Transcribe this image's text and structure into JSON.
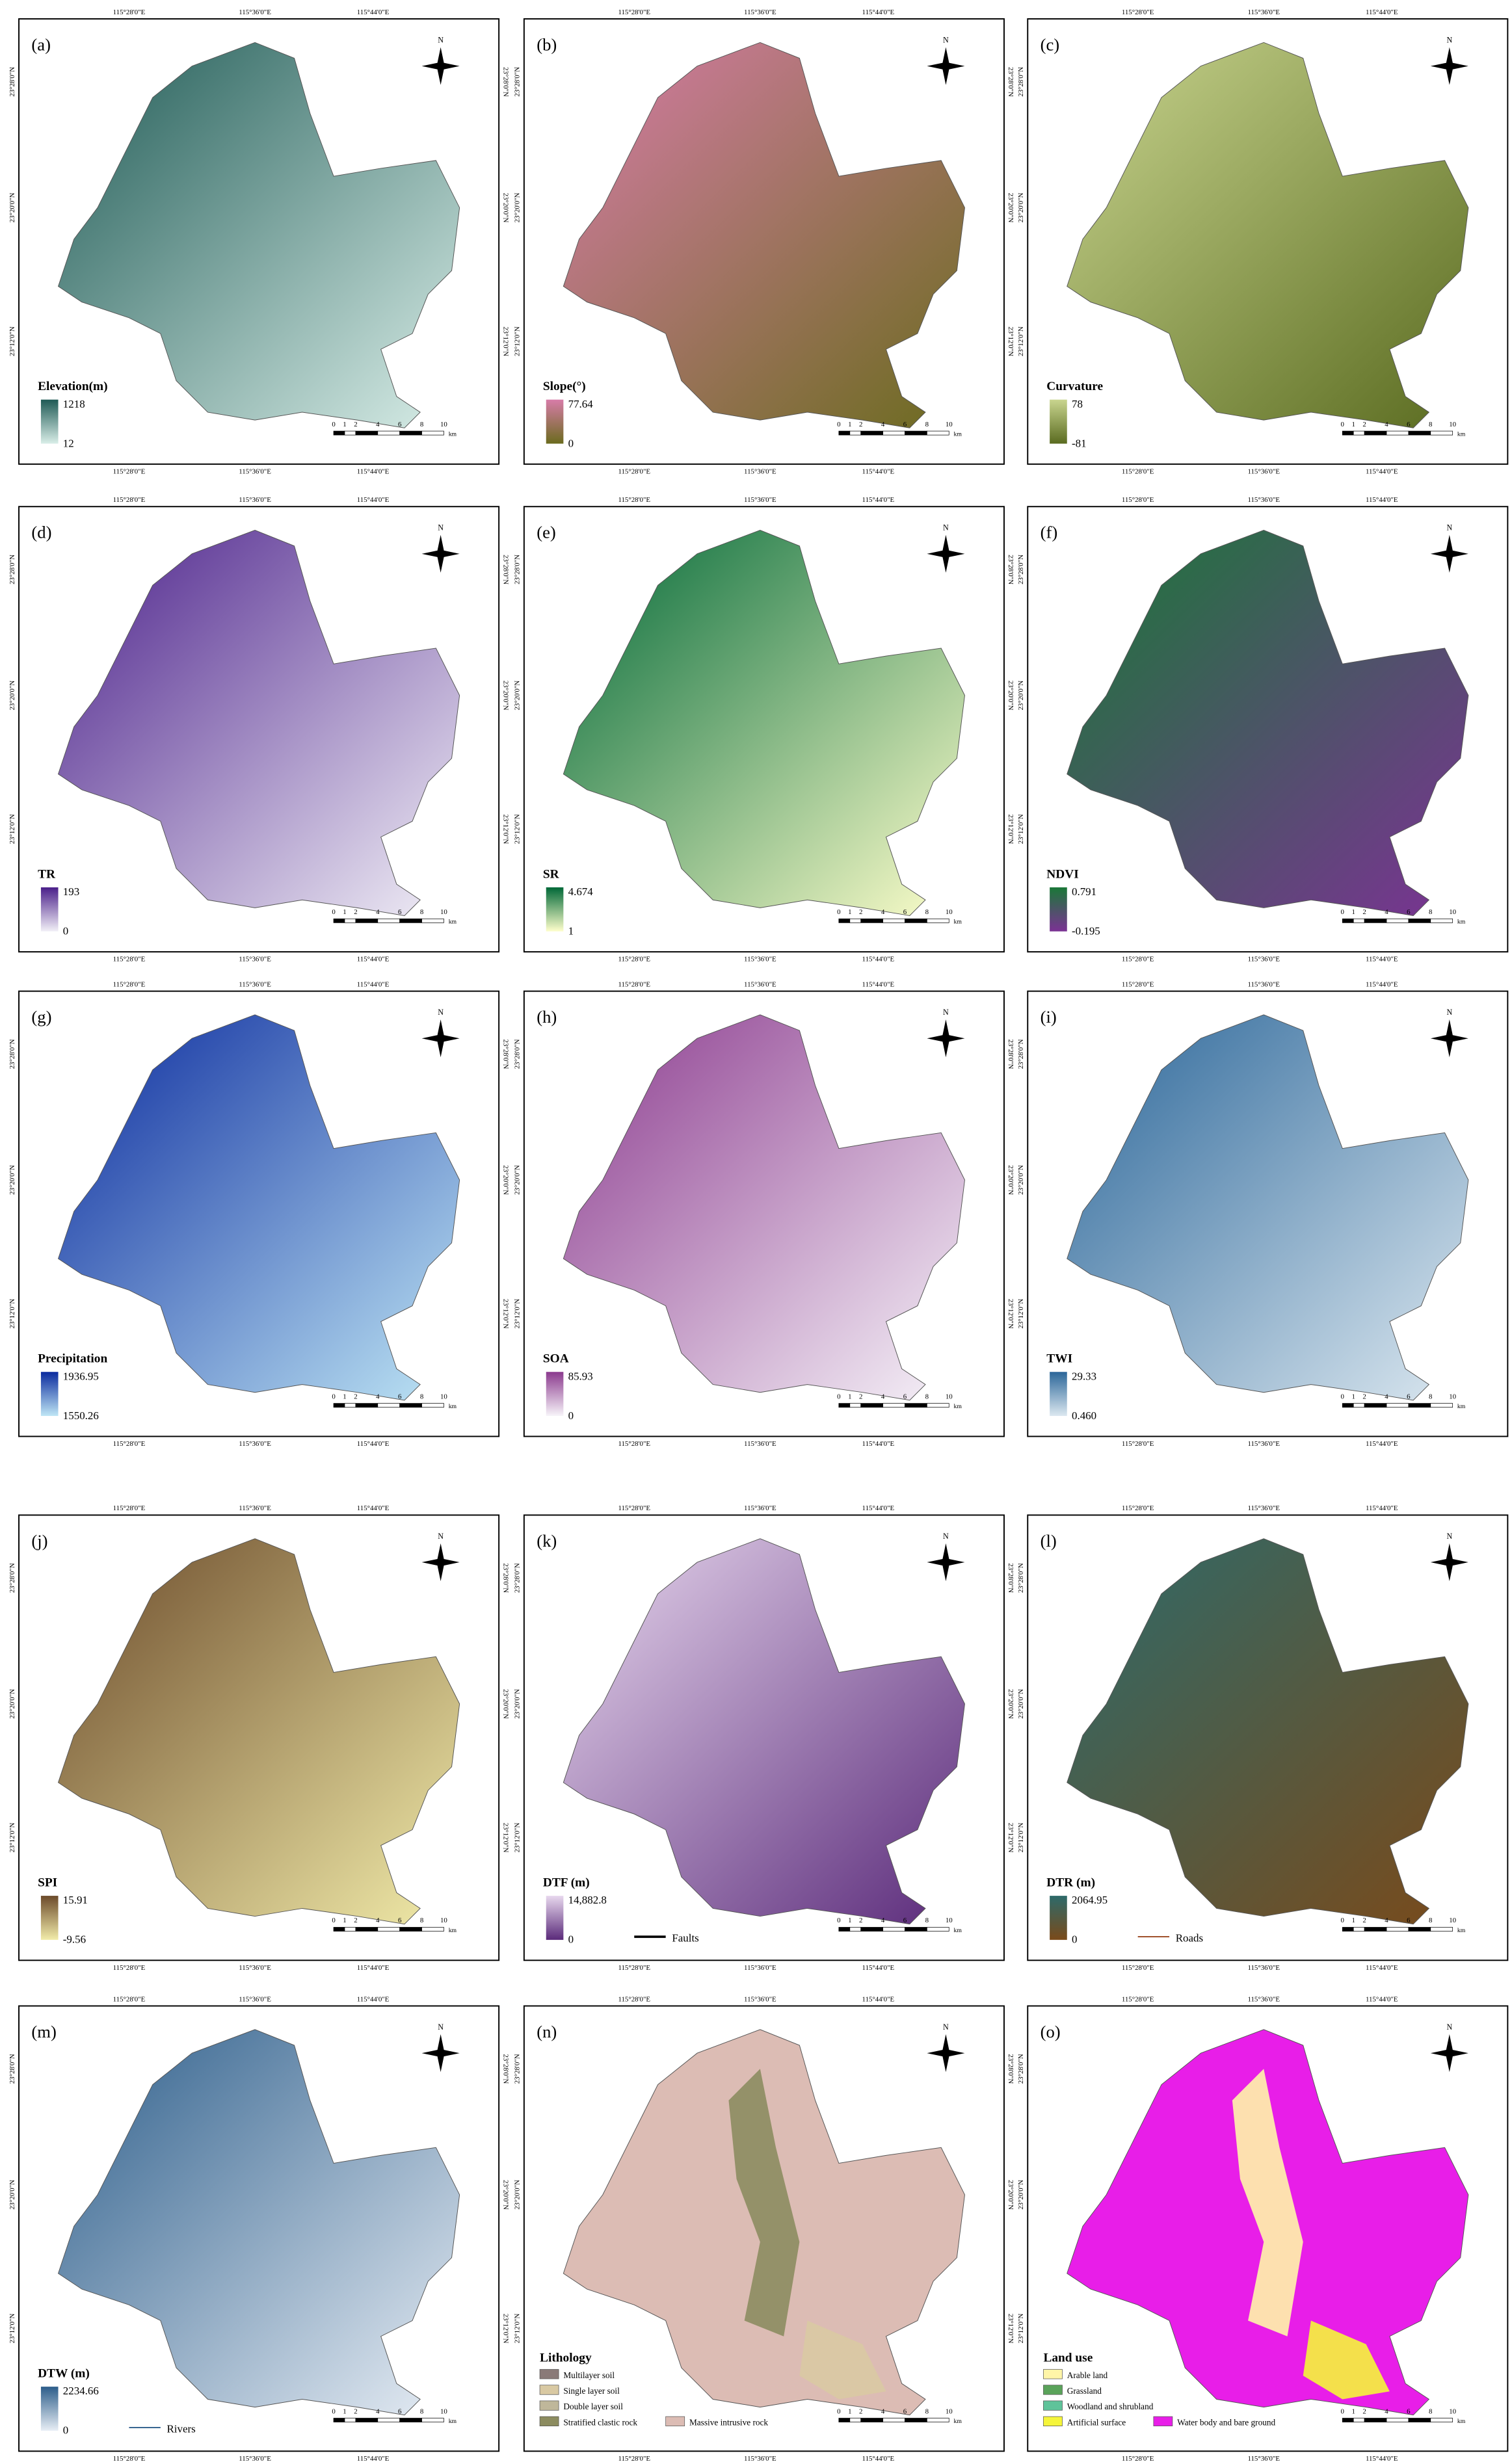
{
  "coordinates": {
    "lon": [
      "115°28'0\"E",
      "115°36'0\"E",
      "115°44'0\"E"
    ],
    "lat": [
      "23°28'0\"N",
      "23°20'0\"N",
      "23°12'0\"N"
    ]
  },
  "north": "N",
  "scale_bar": {
    "ticks": [
      0,
      1,
      2,
      4,
      6,
      8,
      10
    ],
    "unit": "km"
  },
  "panels": [
    {
      "label": "(a)",
      "legend_title": "Elevation(m)",
      "max": "1218",
      "min": "12",
      "colors": [
        "#d9eee8",
        "#1f5a55"
      ]
    },
    {
      "label": "(b)",
      "legend_title": "Slope(°)",
      "max": "77.64",
      "min": "0",
      "colors": [
        "#6b6b1e",
        "#d77ca8"
      ]
    },
    {
      "label": "(c)",
      "legend_title": "Curvature",
      "max": "78",
      "min": "-81",
      "colors": [
        "#5a6b20",
        "#c9d58f"
      ]
    },
    {
      "label": "(d)",
      "legend_title": "TR",
      "max": "193",
      "min": "0",
      "colors": [
        "#f2f0f7",
        "#4a1f8a"
      ]
    },
    {
      "label": "(e)",
      "legend_title": "SR",
      "max": "4.674",
      "min": "1",
      "colors": [
        "#ffffcc",
        "#006837"
      ]
    },
    {
      "label": "(f)",
      "legend_title": "NDVI",
      "max": "0.791",
      "min": "-0.195",
      "colors": [
        "#7b3294",
        "#1a7837"
      ]
    },
    {
      "label": "(g)",
      "legend_title": "Precipitation",
      "max": "1936.95",
      "min": "1550.26",
      "colors": [
        "#bfe6f5",
        "#0a2a9e"
      ]
    },
    {
      "label": "(h)",
      "legend_title": "SOA",
      "max": "85.93",
      "min": "0",
      "colors": [
        "#f7f4f9",
        "#8b3a8e"
      ]
    },
    {
      "label": "(i)",
      "legend_title": "TWI",
      "max": "29.33",
      "min": "0.460",
      "colors": [
        "#dce8f0",
        "#2b6699"
      ]
    },
    {
      "label": "(j)",
      "legend_title": "SPI",
      "max": "15.91",
      "min": "-9.56",
      "colors": [
        "#f2ecaa",
        "#6b4a2a"
      ]
    },
    {
      "label": "(k)",
      "legend_title": "DTF (m)",
      "max": "14,882.8",
      "min": "0",
      "colors": [
        "#5a2a7a",
        "#e8d8ee"
      ],
      "line_legend": {
        "name": "Faults",
        "color": "#000000"
      }
    },
    {
      "label": "(l)",
      "legend_title": "DTR (m)",
      "max": "2064.95",
      "min": "0",
      "colors": [
        "#7a4a1a",
        "#2d6a6a"
      ],
      "line_legend": {
        "name": "Roads",
        "color": "#a0522d"
      }
    },
    {
      "label": "(m)",
      "legend_title": "DTW (m)",
      "max": "2234.66",
      "min": "0",
      "colors": [
        "#e8eef5",
        "#2c5d8a"
      ],
      "line_legend": {
        "name": "Rivers",
        "color": "#2c5d8a"
      }
    },
    {
      "label": "(n)",
      "legend_title": "Lithology",
      "classes": [
        {
          "name": "Multilayer soil",
          "color": "#8a7a78"
        },
        {
          "name": "Single layer soil",
          "color": "#d9c9a3"
        },
        {
          "name": "Double layer soil",
          "color": "#bfb79a"
        },
        {
          "name": "Stratified clastic rock",
          "color": "#8c8c60"
        },
        {
          "name": "Massive intrusive rock",
          "color": "#dcbcb4"
        }
      ]
    },
    {
      "label": "(o)",
      "legend_title": "Land use",
      "classes": [
        {
          "name": "Arable land",
          "color": "#fff5a8"
        },
        {
          "name": "Grassland",
          "color": "#5aa35a"
        },
        {
          "name": "Woodland and shrubland",
          "color": "#5fc39a"
        },
        {
          "name": "Artificial surface",
          "color": "#f5f53a"
        },
        {
          "name": "Water body and bare ground",
          "color": "#e81ee8"
        }
      ]
    }
  ]
}
